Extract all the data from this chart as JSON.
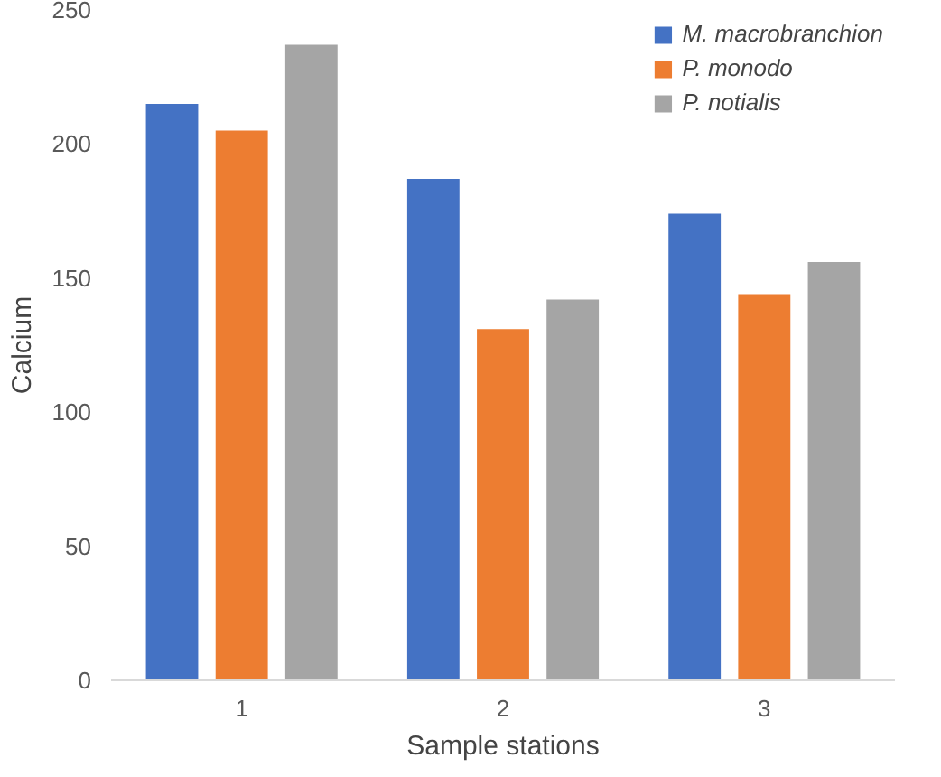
{
  "chart_data": {
    "type": "bar",
    "xlabel": "Sample stations",
    "ylabel": "Calcium",
    "categories": [
      "1",
      "2",
      "3"
    ],
    "series": [
      {
        "name": "M. macrobranchion",
        "color": "#4472c4",
        "values": [
          215,
          187,
          174
        ]
      },
      {
        "name": "P. monodo",
        "color": "#ed7d31",
        "values": [
          205,
          131,
          144
        ]
      },
      {
        "name": "P. notialis",
        "color": "#a5a5a5",
        "values": [
          237,
          142,
          156
        ]
      }
    ],
    "ylim": [
      0,
      250
    ],
    "yticks": [
      0,
      50,
      100,
      150,
      200,
      250
    ],
    "grid": false,
    "legend": "top right"
  }
}
